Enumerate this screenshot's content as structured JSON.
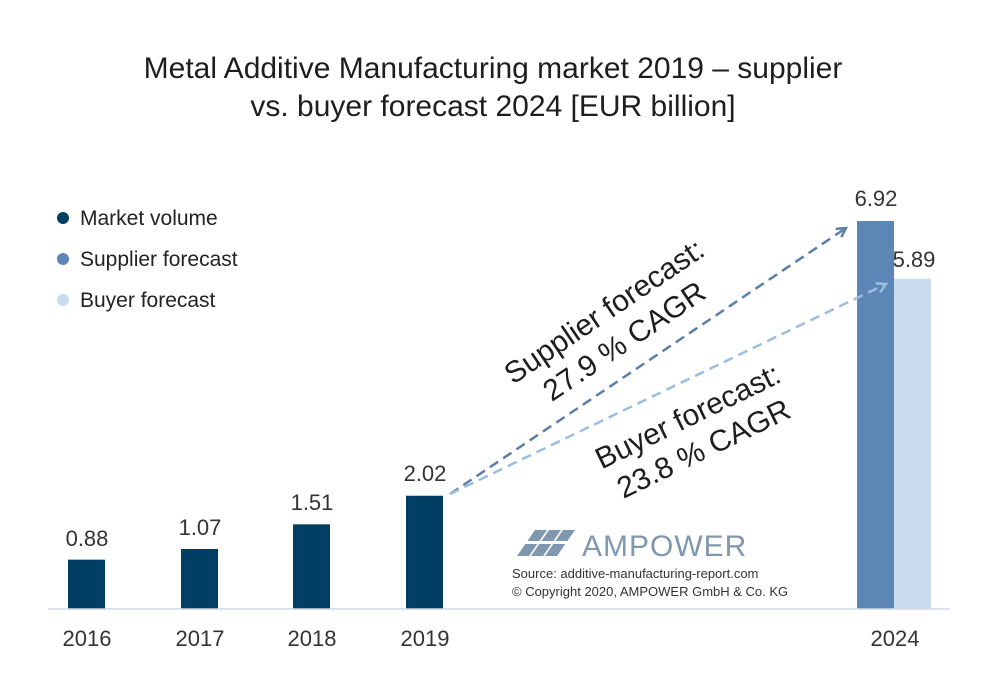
{
  "chart_data": {
    "type": "bar",
    "title_lines": [
      "Metal Additive Manufacturing market 2019 – supplier",
      "vs. buyer forecast 2024 [EUR billion]"
    ],
    "categories": [
      "2016",
      "2017",
      "2018",
      "2019",
      "2024"
    ],
    "series": [
      {
        "name": "Market volume",
        "color": "#003f63",
        "values": [
          0.88,
          1.07,
          1.51,
          2.02,
          null
        ]
      },
      {
        "name": "Supplier forecast",
        "color": "#5b86b5",
        "values": [
          null,
          null,
          null,
          null,
          6.92
        ]
      },
      {
        "name": "Buyer forecast",
        "color": "#c9dbee",
        "values": [
          null,
          null,
          null,
          null,
          5.89
        ]
      }
    ],
    "value_labels": [
      "0.88",
      "1.07",
      "1.51",
      "2.02",
      "6.92",
      "5.89"
    ],
    "ylim": [
      0,
      7.2
    ],
    "grid": false,
    "legend": "top-left",
    "annotations": [
      {
        "lines": [
          "Supplier forecast:",
          "27.9 % CAGR"
        ],
        "series": "Supplier forecast"
      },
      {
        "lines": [
          "Buyer forecast:",
          "23.8 % CAGR"
        ],
        "series": "Buyer forecast"
      }
    ],
    "watermark": {
      "brand": "AMPOWER",
      "source": "Source: additive-manufacturing-report.com",
      "copyright": "© Copyright 2020, AMPOWER GmbH & Co. KG"
    }
  }
}
